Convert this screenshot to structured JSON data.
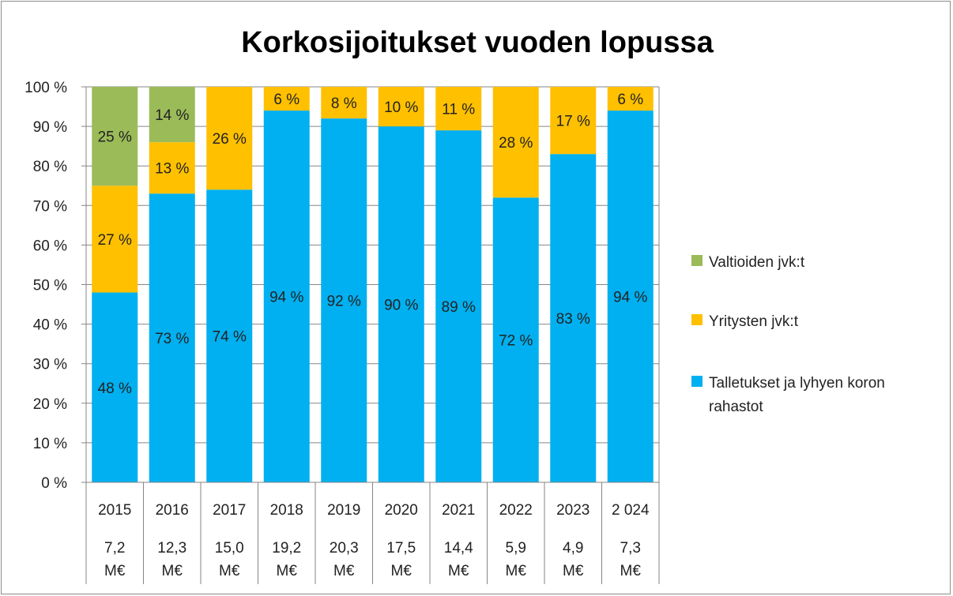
{
  "chart_data": {
    "type": "bar",
    "stacked": true,
    "percent_stacked": true,
    "title": "Korkosijoitukset vuoden lopussa",
    "categories": [
      "2015",
      "2016",
      "2017",
      "2018",
      "2019",
      "2020",
      "2021",
      "2022",
      "2023",
      "2 024"
    ],
    "category_totals": [
      "7,2 M€",
      "12,3 M€",
      "15,0 M€",
      "19,2 M€",
      "20,3 M€",
      "17,5 M€",
      "14,4 M€",
      "5,9 M€",
      "4,9 M€",
      "7,3 M€"
    ],
    "yticks": [
      "0 %",
      "10 %",
      "20 %",
      "30 %",
      "40 %",
      "50 %",
      "60 %",
      "70 %",
      "80 %",
      "90 %",
      "100 %"
    ],
    "ylim": [
      0,
      100
    ],
    "grid": true,
    "legend_position": "right",
    "series": [
      {
        "name": "Talletukset ja lyhyen koron rahastot",
        "legend_lines": [
          "Talletukset ja lyhyen koron",
          "rahastot"
        ],
        "color": "#00b0f0",
        "values": [
          48,
          73,
          74,
          94,
          92,
          90,
          89,
          72,
          83,
          94
        ],
        "labels": [
          "48 %",
          "73 %",
          "74 %",
          "94 %",
          "92 %",
          "90 %",
          "89 %",
          "72 %",
          "83 %",
          "94 %"
        ]
      },
      {
        "name": "Yritysten jvk:t",
        "legend_lines": [
          "Yritysten jvk:t"
        ],
        "color": "#ffc000",
        "values": [
          27,
          13,
          26,
          6,
          8,
          10,
          11,
          28,
          17,
          6
        ],
        "labels": [
          "27 %",
          "13 %",
          "26 %",
          "6 %",
          "8 %",
          "10 %",
          "11 %",
          "28 %",
          "17 %",
          "6 %"
        ]
      },
      {
        "name": "Valtioiden jvk:t",
        "legend_lines": [
          "Valtioiden jvk:t"
        ],
        "color": "#9bbb59",
        "values": [
          25,
          14,
          0,
          0,
          0,
          0,
          0,
          0,
          0,
          0
        ],
        "labels": [
          "25 %",
          "14 %",
          "",
          "",
          "",
          "",
          "",
          "",
          "",
          ""
        ]
      }
    ]
  }
}
